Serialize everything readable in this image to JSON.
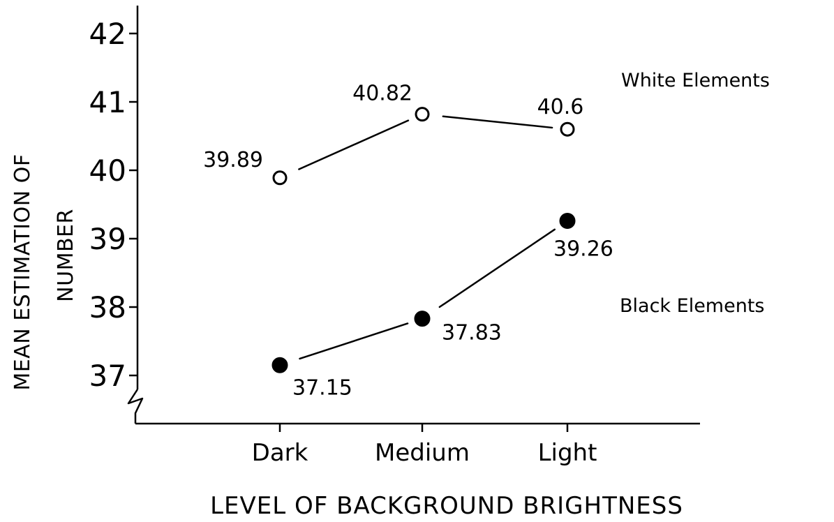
{
  "chart_data": {
    "type": "line",
    "xlabel": "LEVEL OF BACKGROUND BRIGHTNESS",
    "ylabel_lines": [
      "MEAN ESTIMATION OF",
      "NUMBER"
    ],
    "categories": [
      "Dark",
      "Medium",
      "Light"
    ],
    "yticks": [
      "37",
      "38",
      "39",
      "40",
      "41",
      "42"
    ],
    "ylim": [
      36.3,
      42.4
    ],
    "axis_break": true,
    "grid": false,
    "series": [
      {
        "name": "White Elements",
        "marker": "open-circle",
        "values": [
          39.89,
          40.82,
          40.6
        ],
        "value_labels": [
          "39.89",
          "40.82",
          "40.6"
        ]
      },
      {
        "name": "Black Elements",
        "marker": "filled-circle",
        "values": [
          37.15,
          37.83,
          39.26
        ],
        "value_labels": [
          "37.15",
          "37.83",
          "39.26"
        ]
      }
    ],
    "legend_placement": "right, inline labels beside each series"
  }
}
